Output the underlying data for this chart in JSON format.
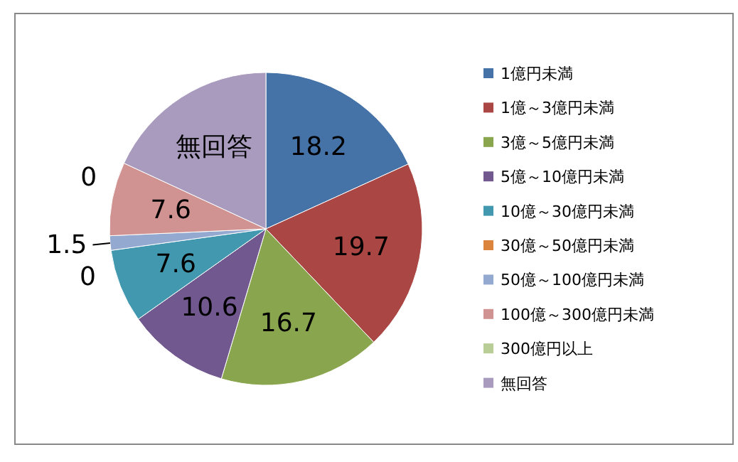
{
  "chart_data": {
    "type": "pie",
    "categories": [
      "1億円未満",
      "1億～3億円未満",
      "3億～5億円未満",
      "5億～10億円未満",
      "10億～30億円未満",
      "30億～50億円未満",
      "50億～100億円未満",
      "100億～300億円未満",
      "300億円以上",
      "無回答"
    ],
    "values": [
      18.2,
      19.7,
      16.7,
      10.6,
      7.6,
      0,
      1.5,
      7.6,
      0,
      18.1
    ],
    "colors": [
      "#4572a7",
      "#aa4643",
      "#89a54e",
      "#71588f",
      "#4198af",
      "#db843d",
      "#93a9cf",
      "#d19392",
      "#b9cd96",
      "#a99bbd"
    ],
    "value_labels": [
      "18.2",
      "19.7",
      "16.7",
      "10.6",
      "7.6",
      "0",
      "1.5",
      "7.6",
      "0",
      "無回答"
    ],
    "legend": "right"
  }
}
